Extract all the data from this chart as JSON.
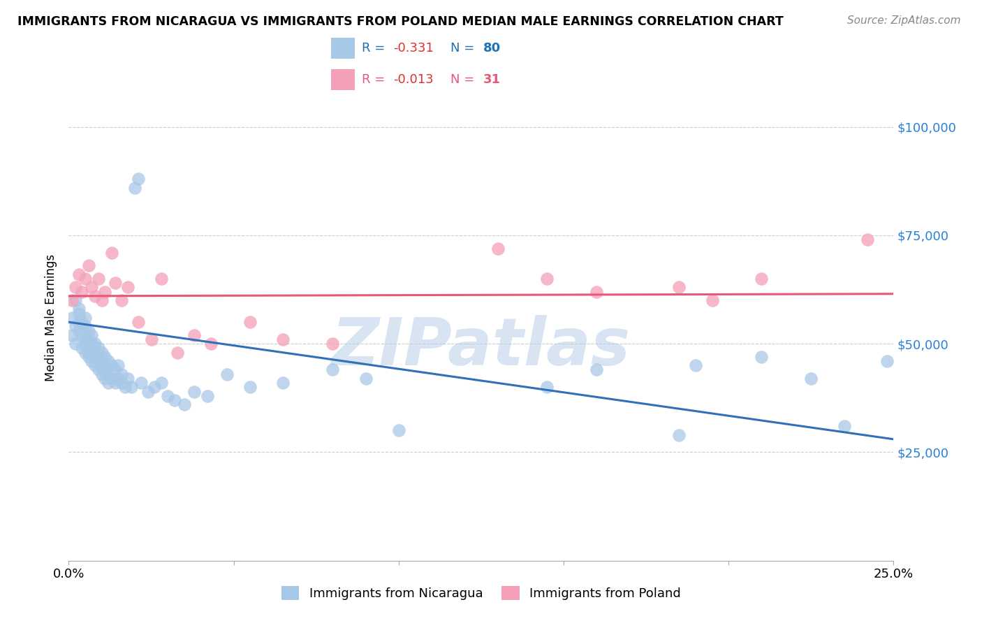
{
  "title": "IMMIGRANTS FROM NICARAGUA VS IMMIGRANTS FROM POLAND MEDIAN MALE EARNINGS CORRELATION CHART",
  "source": "Source: ZipAtlas.com",
  "ylabel": "Median Male Earnings",
  "xlim": [
    0.0,
    0.25
  ],
  "ylim": [
    0,
    112000
  ],
  "yticks": [
    25000,
    50000,
    75000,
    100000
  ],
  "ytick_labels": [
    "$25,000",
    "$50,000",
    "$75,000",
    "$100,000"
  ],
  "xticks": [
    0.0,
    0.05,
    0.1,
    0.15,
    0.2,
    0.25
  ],
  "xtick_labels": [
    "0.0%",
    "",
    "",
    "",
    "",
    "25.0%"
  ],
  "nicaragua_R": -0.331,
  "nicaragua_N": 80,
  "poland_R": -0.013,
  "poland_N": 31,
  "nicaragua_color": "#a8c8e8",
  "poland_color": "#f4a0b8",
  "nicaragua_line_color": "#3070b8",
  "poland_line_color": "#e85878",
  "watermark": "ZIPatlas",
  "nicaragua_x": [
    0.001,
    0.001,
    0.002,
    0.002,
    0.002,
    0.003,
    0.003,
    0.003,
    0.003,
    0.004,
    0.004,
    0.004,
    0.005,
    0.005,
    0.005,
    0.005,
    0.005,
    0.006,
    0.006,
    0.006,
    0.006,
    0.006,
    0.007,
    0.007,
    0.007,
    0.007,
    0.008,
    0.008,
    0.008,
    0.008,
    0.009,
    0.009,
    0.009,
    0.009,
    0.01,
    0.01,
    0.01,
    0.01,
    0.011,
    0.011,
    0.011,
    0.012,
    0.012,
    0.012,
    0.013,
    0.013,
    0.014,
    0.014,
    0.015,
    0.015,
    0.016,
    0.016,
    0.017,
    0.018,
    0.019,
    0.02,
    0.021,
    0.022,
    0.024,
    0.026,
    0.028,
    0.03,
    0.032,
    0.035,
    0.038,
    0.042,
    0.048,
    0.055,
    0.065,
    0.08,
    0.09,
    0.1,
    0.145,
    0.16,
    0.185,
    0.19,
    0.21,
    0.225,
    0.235,
    0.248
  ],
  "nicaragua_y": [
    56000,
    52000,
    54000,
    50000,
    60000,
    55000,
    58000,
    53000,
    57000,
    52000,
    55000,
    49000,
    51000,
    54000,
    50000,
    56000,
    48000,
    50000,
    53000,
    47000,
    51000,
    48000,
    50000,
    52000,
    46000,
    49000,
    47000,
    50000,
    45000,
    48000,
    46000,
    49000,
    44000,
    47000,
    45000,
    48000,
    43000,
    46000,
    44000,
    47000,
    42000,
    43000,
    46000,
    41000,
    42000,
    45000,
    41000,
    44000,
    42000,
    45000,
    41000,
    43000,
    40000,
    42000,
    40000,
    86000,
    88000,
    41000,
    39000,
    40000,
    41000,
    38000,
    37000,
    36000,
    39000,
    38000,
    43000,
    40000,
    41000,
    44000,
    42000,
    30000,
    40000,
    44000,
    29000,
    45000,
    47000,
    42000,
    31000,
    46000
  ],
  "poland_x": [
    0.001,
    0.002,
    0.003,
    0.004,
    0.005,
    0.006,
    0.007,
    0.008,
    0.009,
    0.01,
    0.011,
    0.013,
    0.014,
    0.016,
    0.018,
    0.021,
    0.025,
    0.028,
    0.033,
    0.038,
    0.043,
    0.055,
    0.065,
    0.08,
    0.13,
    0.145,
    0.16,
    0.185,
    0.195,
    0.21,
    0.242
  ],
  "poland_y": [
    60000,
    63000,
    66000,
    62000,
    65000,
    68000,
    63000,
    61000,
    65000,
    60000,
    62000,
    71000,
    64000,
    60000,
    63000,
    55000,
    51000,
    65000,
    48000,
    52000,
    50000,
    55000,
    51000,
    50000,
    72000,
    65000,
    62000,
    63000,
    60000,
    65000,
    74000
  ],
  "nic_line_x0": 0.0,
  "nic_line_x1": 0.25,
  "nic_line_y0": 55000,
  "nic_line_y1": 28000,
  "pol_line_x0": 0.0,
  "pol_line_x1": 0.25,
  "pol_line_y0": 61000,
  "pol_line_y1": 61500
}
